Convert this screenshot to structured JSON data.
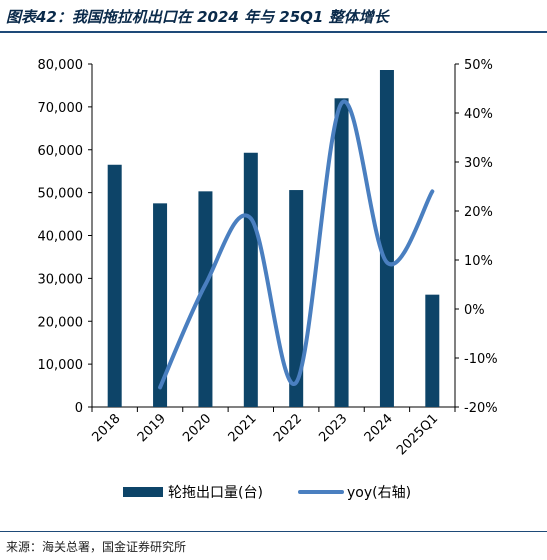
{
  "figure": {
    "title": "图表42：我国拖拉机出口在 2024 年与 25Q1 整体增长",
    "source": "来源：海关总署，国金证券研究所"
  },
  "colors": {
    "bar": "#0d4468",
    "line": "#4a7fc0",
    "rule": "#1e4a78"
  },
  "chart_data": {
    "type": "bar",
    "categories": [
      "2018",
      "2019",
      "2020",
      "2021",
      "2022",
      "2023",
      "2024",
      "2025Q1"
    ],
    "series": [
      {
        "name": "轮拖出口量(台)",
        "type": "bar",
        "axis": "left",
        "values": [
          56500,
          47500,
          50300,
          59300,
          50600,
          72000,
          78600,
          26200
        ]
      },
      {
        "name": "yoy(右轴)",
        "type": "line",
        "axis": "right",
        "values": [
          null,
          -16,
          5,
          18.5,
          -15,
          42,
          9.5,
          24
        ]
      }
    ],
    "y_left": {
      "min": 0,
      "max": 80000,
      "ticks": [
        0,
        10000,
        20000,
        30000,
        40000,
        50000,
        60000,
        70000,
        80000
      ],
      "tick_labels": [
        "0",
        "10,000",
        "20,000",
        "30,000",
        "40,000",
        "50,000",
        "60,000",
        "70,000",
        "80,000"
      ]
    },
    "y_right": {
      "min": -20,
      "max": 50,
      "ticks": [
        -20,
        -10,
        0,
        10,
        20,
        30,
        40,
        50
      ],
      "tick_labels": [
        "-20%",
        "-10%",
        "0%",
        "10%",
        "20%",
        "30%",
        "40%",
        "50%"
      ]
    },
    "grid": false,
    "legend_position": "bottom"
  }
}
